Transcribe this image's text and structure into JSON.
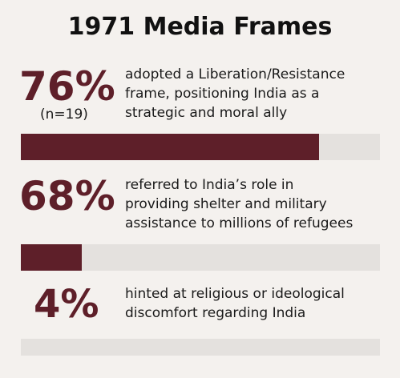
{
  "title": "1971 Media Frames",
  "colors": {
    "background": "#f4f1ee",
    "accent": "#5e1f29",
    "track": "#e4e1de",
    "text": "#1a1a1a"
  },
  "chart_data": {
    "type": "bar",
    "orientation": "horizontal",
    "title": "1971 Media Frames",
    "ylim": [
      0,
      100
    ],
    "items": [
      {
        "value_label": "76%",
        "value": 76,
        "sample_label": "(n=19)",
        "desc_lines": [
          "adopted a Liberation/Resistance",
          "frame, positioning India as a",
          "strategic and moral ally"
        ]
      },
      {
        "value_label": "68%",
        "value": 68,
        "desc_lines": [
          "referred to India’s role in",
          "providing shelter and military",
          "assistance to millions of refugees"
        ]
      },
      {
        "value_label": "4%",
        "value": 4,
        "desc_lines": [
          "hinted at religious or ideological",
          "discomfort regarding India"
        ]
      }
    ],
    "bar_fill_fractions": [
      0.83,
      0.17,
      0
    ]
  }
}
